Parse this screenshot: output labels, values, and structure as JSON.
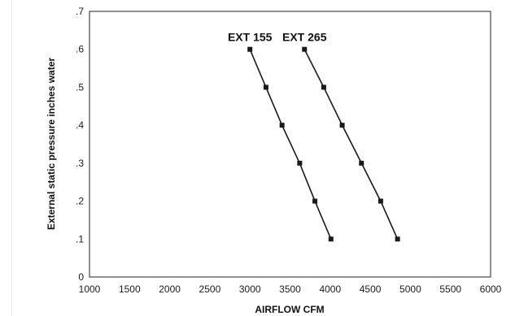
{
  "colors": {
    "line": "#1a1a1a",
    "marker": "#1a1a1a",
    "frame": "#222222"
  },
  "chart_data": {
    "type": "line",
    "title": "",
    "xlabel": "AIRFLOW CFM",
    "ylabel": "External static pressure inches water",
    "xlim": [
      1000,
      6000
    ],
    "ylim": [
      0,
      0.7
    ],
    "x_ticks": [
      "1000",
      "1500",
      "2000",
      "2500",
      "3000",
      "3500",
      "4000",
      "4500",
      "5000",
      "5500",
      "6000"
    ],
    "y_ticks": [
      "0",
      ".1",
      ".2",
      ".3",
      ".4",
      ".5",
      ".6",
      ".7"
    ],
    "grid": false,
    "legend": "none",
    "series": [
      {
        "name": "EXT 155",
        "points": [
          {
            "x": 3000,
            "y": 0.6
          },
          {
            "x": 3200,
            "y": 0.5
          },
          {
            "x": 3400,
            "y": 0.4
          },
          {
            "x": 3620,
            "y": 0.3
          },
          {
            "x": 3810,
            "y": 0.2
          },
          {
            "x": 4010,
            "y": 0.1
          }
        ]
      },
      {
        "name": "EXT 265",
        "points": [
          {
            "x": 3680,
            "y": 0.6
          },
          {
            "x": 3920,
            "y": 0.5
          },
          {
            "x": 4150,
            "y": 0.4
          },
          {
            "x": 4390,
            "y": 0.3
          },
          {
            "x": 4630,
            "y": 0.2
          },
          {
            "x": 4840,
            "y": 0.1
          }
        ]
      }
    ]
  }
}
